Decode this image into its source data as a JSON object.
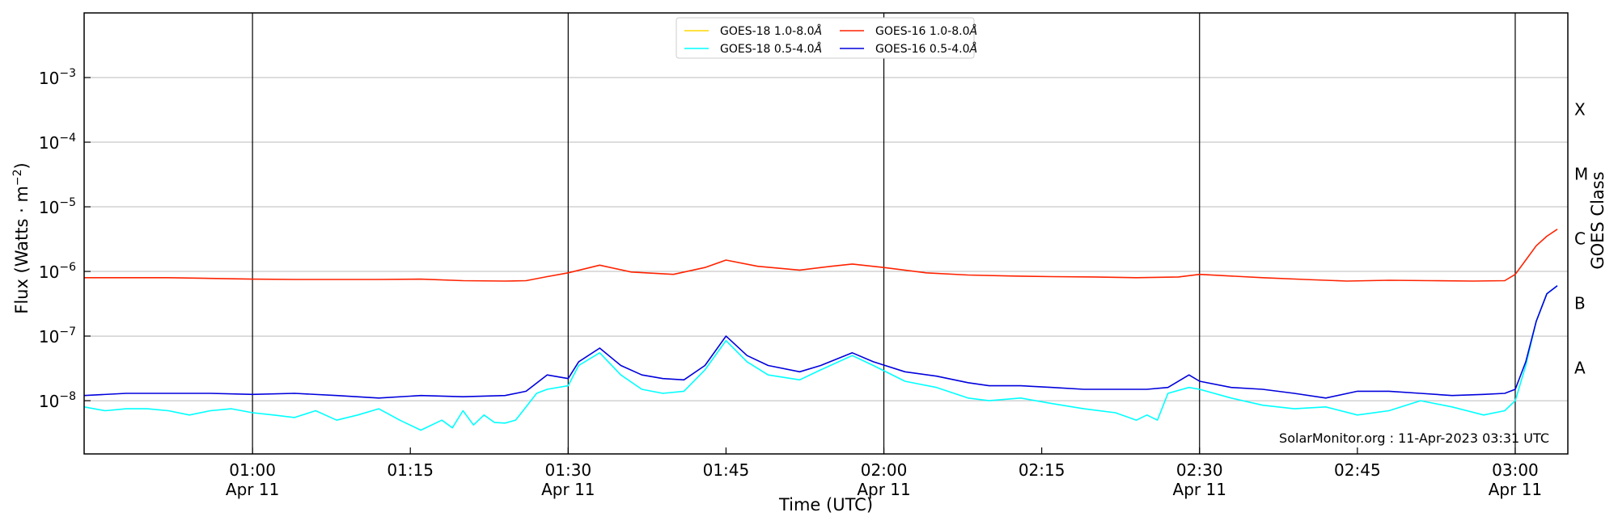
{
  "chart_data": {
    "type": "line",
    "title": "",
    "xlabel": "Time (UTC)",
    "ylabel_base": "Flux (Watts · m",
    "ylabel_exp": "−2",
    "ylabel_close": ")",
    "right_axis_label": "GOES Class",
    "y_scale": "log",
    "ylim": [
      1.5e-09,
      0.01
    ],
    "xlim": [
      "00:44",
      "03:05"
    ],
    "grid": "horizontal at decades",
    "legend_position": "top-center",
    "credit": "SolarMonitor.org : 11-Apr-2023 03:31 UTC",
    "colors": {
      "goes18_long": "#ffd700",
      "goes18_short": "#00ffff",
      "goes16_long": "#ff2200",
      "goes16_short": "#0000dd",
      "grid": "#bbbbbb"
    },
    "y_ticks": [
      {
        "value": 1e-08,
        "base": "10",
        "exp": "−8"
      },
      {
        "value": 1e-07,
        "base": "10",
        "exp": "−7"
      },
      {
        "value": 1e-06,
        "base": "10",
        "exp": "−6"
      },
      {
        "value": 1e-05,
        "base": "10",
        "exp": "−5"
      },
      {
        "value": 0.0001,
        "base": "10",
        "exp": "−4"
      },
      {
        "value": 0.001,
        "base": "10",
        "exp": "−3"
      }
    ],
    "goes_classes": [
      {
        "label": "A",
        "value": 3.2e-08
      },
      {
        "label": "B",
        "value": 3.2e-07
      },
      {
        "label": "C",
        "value": 3.2e-06
      },
      {
        "label": "M",
        "value": 3.2e-05
      },
      {
        "label": "X",
        "value": 0.00032
      }
    ],
    "x_ticks": [
      {
        "time": "01:00",
        "date": "Apr 11"
      },
      {
        "time": "01:15",
        "date": ""
      },
      {
        "time": "01:30",
        "date": "Apr 11"
      },
      {
        "time": "01:45",
        "date": ""
      },
      {
        "time": "02:00",
        "date": "Apr 11"
      },
      {
        "time": "02:15",
        "date": ""
      },
      {
        "time": "02:30",
        "date": "Apr 11"
      },
      {
        "time": "02:45",
        "date": ""
      },
      {
        "time": "03:00",
        "date": "Apr 11"
      }
    ],
    "vertical_lines": [
      "01:00",
      "01:30",
      "02:00",
      "02:30",
      "03:00"
    ],
    "series": [
      {
        "name": "GOES-18 1.0-8.0Å",
        "label_base": "GOES-18 1.0-8.0",
        "color": "#ffd700",
        "x": [],
        "values": []
      },
      {
        "name": "GOES-16 1.0-8.0Å",
        "label_base": "GOES-16 1.0-8.0",
        "color": "#ff2200",
        "x": [
          "00:44",
          "00:48",
          "00:52",
          "00:56",
          "01:00",
          "01:04",
          "01:08",
          "01:12",
          "01:16",
          "01:20",
          "01:24",
          "01:26",
          "01:28",
          "01:30",
          "01:33",
          "01:36",
          "01:40",
          "01:43",
          "01:45",
          "01:48",
          "01:52",
          "01:55",
          "01:57",
          "02:00",
          "02:04",
          "02:08",
          "02:12",
          "02:16",
          "02:20",
          "02:24",
          "02:28",
          "02:30",
          "02:36",
          "02:40",
          "02:44",
          "02:48",
          "02:52",
          "02:56",
          "02:59",
          "03:00",
          "03:01",
          "03:02",
          "03:03",
          "03:04"
        ],
        "values": [
          8e-07,
          8e-07,
          8e-07,
          7.8e-07,
          7.6e-07,
          7.5e-07,
          7.5e-07,
          7.5e-07,
          7.6e-07,
          7.2e-07,
          7.1e-07,
          7.2e-07,
          8.3e-07,
          9.5e-07,
          1.25e-06,
          9.8e-07,
          9e-07,
          1.15e-06,
          1.5e-06,
          1.2e-06,
          1.05e-06,
          1.2e-06,
          1.3e-06,
          1.15e-06,
          9.5e-07,
          8.8e-07,
          8.5e-07,
          8.3e-07,
          8.2e-07,
          8e-07,
          8.2e-07,
          9e-07,
          8e-07,
          7.5e-07,
          7.1e-07,
          7.3e-07,
          7.2e-07,
          7.1e-07,
          7.2e-07,
          9e-07,
          1.5e-06,
          2.5e-06,
          3.5e-06,
          4.5e-06
        ]
      },
      {
        "name": "GOES-18 0.5-4.0Å",
        "label_base": "GOES-18 0.5-4.0",
        "color": "#00ffff",
        "x": [
          "00:44",
          "00:46",
          "00:48",
          "00:50",
          "00:52",
          "00:54",
          "00:56",
          "00:58",
          "01:00",
          "01:02",
          "01:04",
          "01:06",
          "01:08",
          "01:10",
          "01:12",
          "01:14",
          "01:16",
          "01:18",
          "01:19",
          "01:20",
          "01:21",
          "01:22",
          "01:23",
          "01:24",
          "01:25",
          "01:26",
          "01:27",
          "01:28",
          "01:30",
          "01:31",
          "01:33",
          "01:35",
          "01:37",
          "01:39",
          "01:41",
          "01:43",
          "01:45",
          "01:47",
          "01:49",
          "01:52",
          "01:54",
          "01:57",
          "01:59",
          "02:02",
          "02:05",
          "02:08",
          "02:10",
          "02:13",
          "02:16",
          "02:19",
          "02:22",
          "02:24",
          "02:25",
          "02:26",
          "02:27",
          "02:29",
          "02:30",
          "02:33",
          "02:36",
          "02:39",
          "02:42",
          "02:45",
          "02:48",
          "02:51",
          "02:54",
          "02:57",
          "02:59",
          "03:00",
          "03:01",
          "03:02",
          "03:03",
          "03:04"
        ],
        "values": [
          8e-09,
          7e-09,
          7.5e-09,
          7.5e-09,
          7e-09,
          6e-09,
          7e-09,
          7.5e-09,
          6.5e-09,
          6e-09,
          5.5e-09,
          7e-09,
          5e-09,
          6e-09,
          7.5e-09,
          5e-09,
          3.5e-09,
          5e-09,
          3.8e-09,
          7e-09,
          4.2e-09,
          6e-09,
          4.6e-09,
          4.5e-09,
          5e-09,
          8e-09,
          1.3e-08,
          1.5e-08,
          1.7e-08,
          3.5e-08,
          5.5e-08,
          2.5e-08,
          1.5e-08,
          1.3e-08,
          1.4e-08,
          3e-08,
          8.5e-08,
          4e-08,
          2.5e-08,
          2.1e-08,
          3e-08,
          5e-08,
          3.5e-08,
          2e-08,
          1.6e-08,
          1.1e-08,
          1e-08,
          1.1e-08,
          9e-09,
          7.5e-09,
          6.5e-09,
          5e-09,
          6e-09,
          5e-09,
          1.3e-08,
          1.6e-08,
          1.5e-08,
          1.1e-08,
          8.5e-09,
          7.5e-09,
          8e-09,
          6e-09,
          7e-09,
          1e-08,
          8e-09,
          6e-09,
          7e-09,
          1e-08,
          3.5e-08,
          1.7e-07,
          4.5e-07,
          6e-07
        ]
      },
      {
        "name": "GOES-16 0.5-4.0Å",
        "label_base": "GOES-16 0.5-4.0",
        "color": "#0000dd",
        "x": [
          "00:44",
          "00:48",
          "00:52",
          "00:56",
          "01:00",
          "01:04",
          "01:08",
          "01:12",
          "01:16",
          "01:20",
          "01:24",
          "01:26",
          "01:28",
          "01:30",
          "01:31",
          "01:33",
          "01:35",
          "01:37",
          "01:39",
          "01:41",
          "01:43",
          "01:45",
          "01:47",
          "01:49",
          "01:52",
          "01:54",
          "01:57",
          "01:59",
          "02:02",
          "02:05",
          "02:08",
          "02:10",
          "02:13",
          "02:16",
          "02:19",
          "02:22",
          "02:25",
          "02:27",
          "02:29",
          "02:30",
          "02:33",
          "02:36",
          "02:39",
          "02:42",
          "02:45",
          "02:48",
          "02:51",
          "02:54",
          "02:57",
          "02:59",
          "03:00",
          "03:01",
          "03:02",
          "03:03",
          "03:04"
        ],
        "values": [
          1.2e-08,
          1.3e-08,
          1.3e-08,
          1.3e-08,
          1.25e-08,
          1.3e-08,
          1.2e-08,
          1.1e-08,
          1.2e-08,
          1.15e-08,
          1.2e-08,
          1.4e-08,
          2.5e-08,
          2.2e-08,
          4e-08,
          6.5e-08,
          3.5e-08,
          2.5e-08,
          2.2e-08,
          2.1e-08,
          3.5e-08,
          1e-07,
          5e-08,
          3.5e-08,
          2.8e-08,
          3.5e-08,
          5.5e-08,
          4e-08,
          2.8e-08,
          2.4e-08,
          1.9e-08,
          1.7e-08,
          1.7e-08,
          1.6e-08,
          1.5e-08,
          1.5e-08,
          1.5e-08,
          1.6e-08,
          2.5e-08,
          2e-08,
          1.6e-08,
          1.5e-08,
          1.3e-08,
          1.1e-08,
          1.4e-08,
          1.4e-08,
          1.3e-08,
          1.2e-08,
          1.25e-08,
          1.3e-08,
          1.5e-08,
          4e-08,
          1.7e-07,
          4.5e-07,
          6e-07
        ]
      }
    ]
  }
}
